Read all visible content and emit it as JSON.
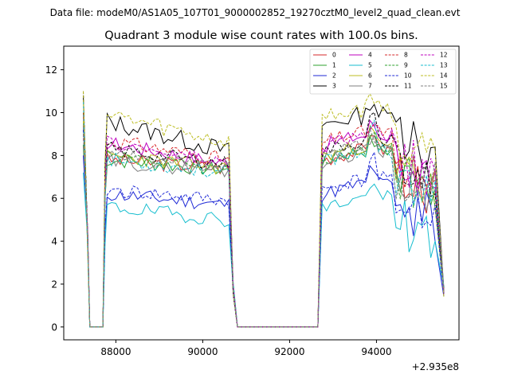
{
  "chart_data": {
    "type": "line",
    "suptitle": "Data file: modeM0/AS1A05_107T01_9000002852_19270cztM0_level2_quad_clean.evt",
    "title": "Quadrant 3 module wise count rates with 100.0s bins.",
    "xlabel": "",
    "ylabel": "",
    "x_offset_label": "+2.935e8",
    "xlim": [
      86800,
      95900
    ],
    "ylim": [
      -0.6,
      13.1
    ],
    "xticks": [
      88000,
      90000,
      92000,
      94000
    ],
    "yticks": [
      0,
      2,
      4,
      6,
      8,
      10,
      12
    ],
    "xtick_labels": [
      "88000",
      "90000",
      "92000",
      "94000"
    ],
    "ytick_labels": [
      "0",
      "2",
      "4",
      "6",
      "8",
      "10",
      "12"
    ],
    "legend_position": "top-right",
    "gap_value": 0,
    "segments": [
      {
        "x_start": 87250,
        "x_end": 90750
      },
      {
        "x_start": 92650,
        "x_end": 95550
      }
    ],
    "series": [
      {
        "name": "0",
        "color": "#d62728",
        "dash": "solid",
        "base": 7.6,
        "trend": [
          7.8,
          7.4
        ],
        "amp": 0.35,
        "peak": 10.0,
        "seed": 3
      },
      {
        "name": "1",
        "color": "#2ca02c",
        "dash": "solid",
        "base": 7.5,
        "trend": [
          7.8,
          7.3
        ],
        "amp": 0.35,
        "peak": 8.5,
        "seed": 7
      },
      {
        "name": "2",
        "color": "#1f2ad6",
        "dash": "solid",
        "base": 6.0,
        "trend": [
          6.2,
          5.7
        ],
        "amp": 0.35,
        "peak": 8.0,
        "seed": 11
      },
      {
        "name": "3",
        "color": "#000000",
        "dash": "solid",
        "base": 9.0,
        "trend": [
          9.6,
          8.2
        ],
        "amp": 0.45,
        "peak": 10.8,
        "seed": 13
      },
      {
        "name": "4",
        "color": "#bf00bf",
        "dash": "solid",
        "base": 8.1,
        "trend": [
          8.6,
          7.6
        ],
        "amp": 0.35,
        "peak": 9.5,
        "seed": 17
      },
      {
        "name": "5",
        "color": "#17becf",
        "dash": "solid",
        "base": 5.3,
        "trend": [
          5.6,
          5.0
        ],
        "amp": 0.35,
        "peak": 7.2,
        "seed": 19
      },
      {
        "name": "6",
        "color": "#bcbd22",
        "dash": "solid",
        "base": 7.7,
        "trend": [
          8.0,
          7.4
        ],
        "amp": 0.35,
        "peak": 9.6,
        "seed": 23
      },
      {
        "name": "7",
        "color": "#7f7f7f",
        "dash": "solid",
        "base": 7.5,
        "trend": [
          7.7,
          7.3
        ],
        "amp": 0.35,
        "peak": 9.4,
        "seed": 29
      },
      {
        "name": "8",
        "color": "#d62728",
        "dash": "dashed",
        "base": 8.3,
        "trend": [
          8.7,
          7.8
        ],
        "amp": 0.35,
        "peak": 9.0,
        "seed": 31
      },
      {
        "name": "9",
        "color": "#2ca02c",
        "dash": "dashed",
        "base": 7.6,
        "trend": [
          7.9,
          7.3
        ],
        "amp": 0.35,
        "peak": 9.2,
        "seed": 37
      },
      {
        "name": "10",
        "color": "#1f2ad6",
        "dash": "dashed",
        "base": 6.2,
        "trend": [
          6.4,
          5.9
        ],
        "amp": 0.35,
        "peak": 9.2,
        "seed": 41
      },
      {
        "name": "11",
        "color": "#000000",
        "dash": "dashed",
        "base": 7.9,
        "trend": [
          8.3,
          7.6
        ],
        "amp": 0.35,
        "peak": 11.0,
        "seed": 43
      },
      {
        "name": "12",
        "color": "#bf00bf",
        "dash": "dashed",
        "base": 8.1,
        "trend": [
          8.6,
          7.6
        ],
        "amp": 0.35,
        "peak": 9.0,
        "seed": 47
      },
      {
        "name": "13",
        "color": "#17becf",
        "dash": "dashed",
        "base": 7.5,
        "trend": [
          7.8,
          7.2
        ],
        "amp": 0.35,
        "peak": 10.5,
        "seed": 53
      },
      {
        "name": "14",
        "color": "#bcbd22",
        "dash": "dashed",
        "base": 9.3,
        "trend": [
          9.9,
          8.6
        ],
        "amp": 0.45,
        "peak": 11.0,
        "seed": 59
      },
      {
        "name": "15",
        "color": "#7f7f7f",
        "dash": "dashed",
        "base": 7.7,
        "trend": [
          8.0,
          7.4
        ],
        "amp": 0.35,
        "peak": 9.0,
        "seed": 61
      }
    ]
  }
}
